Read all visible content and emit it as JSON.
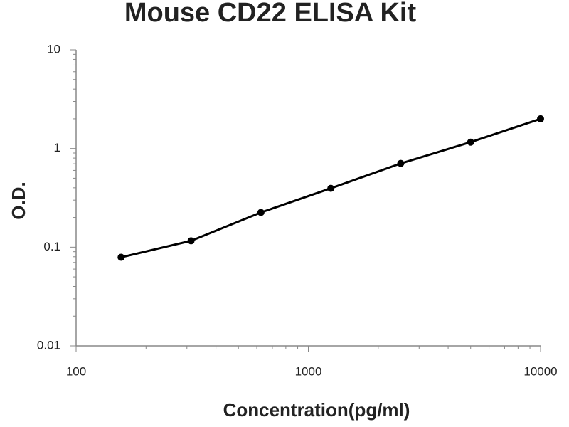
{
  "chart_data": {
    "type": "line",
    "title": "Mouse CD22 ELISA Kit",
    "x_label": "Concentration(pg/ml)",
    "y_label": "O.D.",
    "x": [
      156.25,
      312.5,
      625,
      1250,
      2500,
      5000,
      10000
    ],
    "series": [
      {
        "color": "#000000",
        "values": [
          0.079,
          0.116,
          0.225,
          0.395,
          0.706,
          1.16,
          2.0
        ]
      }
    ],
    "xlim": [
      100,
      10000
    ],
    "xticks": [
      100,
      1000,
      10000
    ],
    "ylim": [
      0.01,
      10
    ],
    "yticks": [
      0.01,
      0.1,
      1,
      10
    ],
    "log_x": true,
    "log_y": true,
    "grid": false,
    "markers": true
  }
}
